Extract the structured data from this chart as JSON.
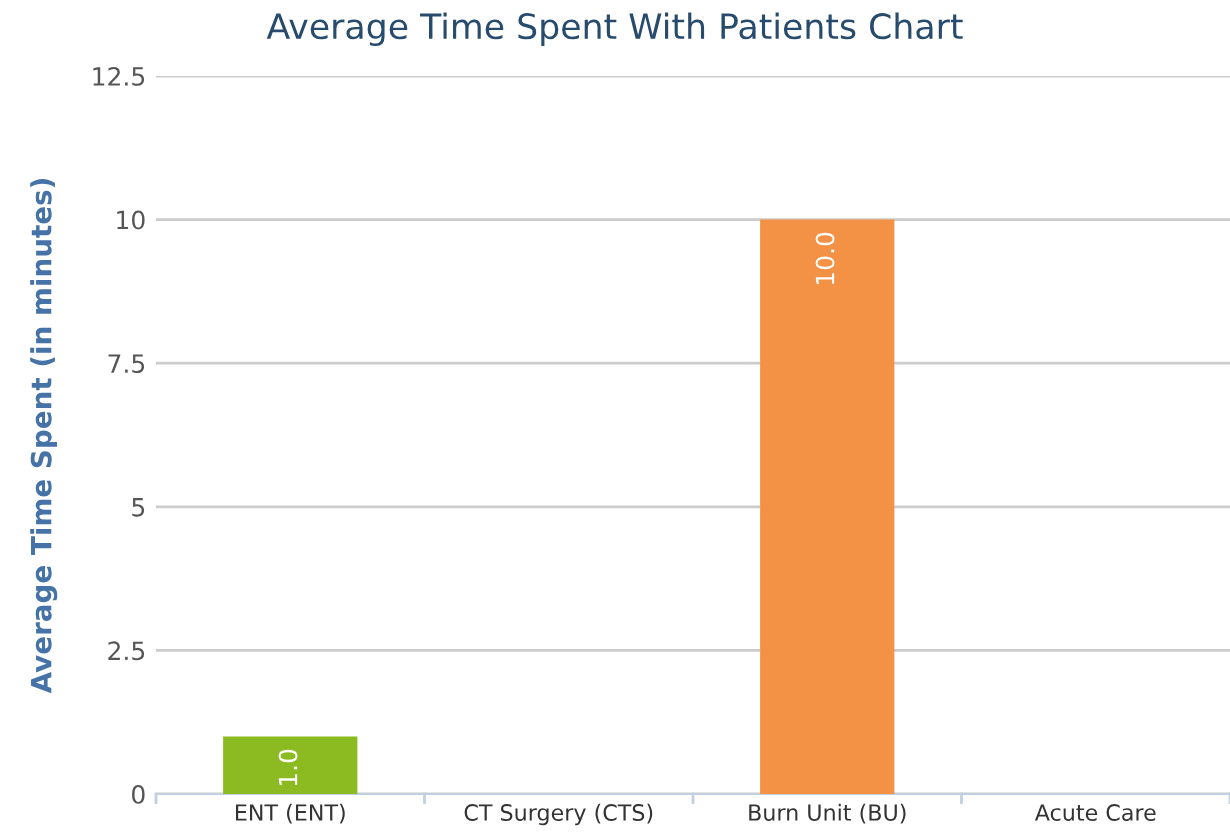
{
  "chart_data": {
    "type": "bar",
    "title": "Average Time Spent With Patients Chart",
    "ylabel": "Average Time Spent (in minutes)",
    "categories": [
      "ENT (ENT)",
      "CT Surgery (CTS)",
      "Burn Unit (BU)",
      "Acute Care"
    ],
    "values": [
      1.0,
      null,
      10.0,
      null
    ],
    "colors": [
      "#8cbb21",
      "#8cbb21",
      "#f39145",
      "#f39145"
    ],
    "value_labels": [
      "1.0",
      null,
      "10.0",
      null
    ],
    "ylim": [
      0,
      12.5
    ],
    "yticks": [
      0,
      2.5,
      5,
      7.5,
      10,
      12.5
    ],
    "grid": "y",
    "legend": false
  }
}
